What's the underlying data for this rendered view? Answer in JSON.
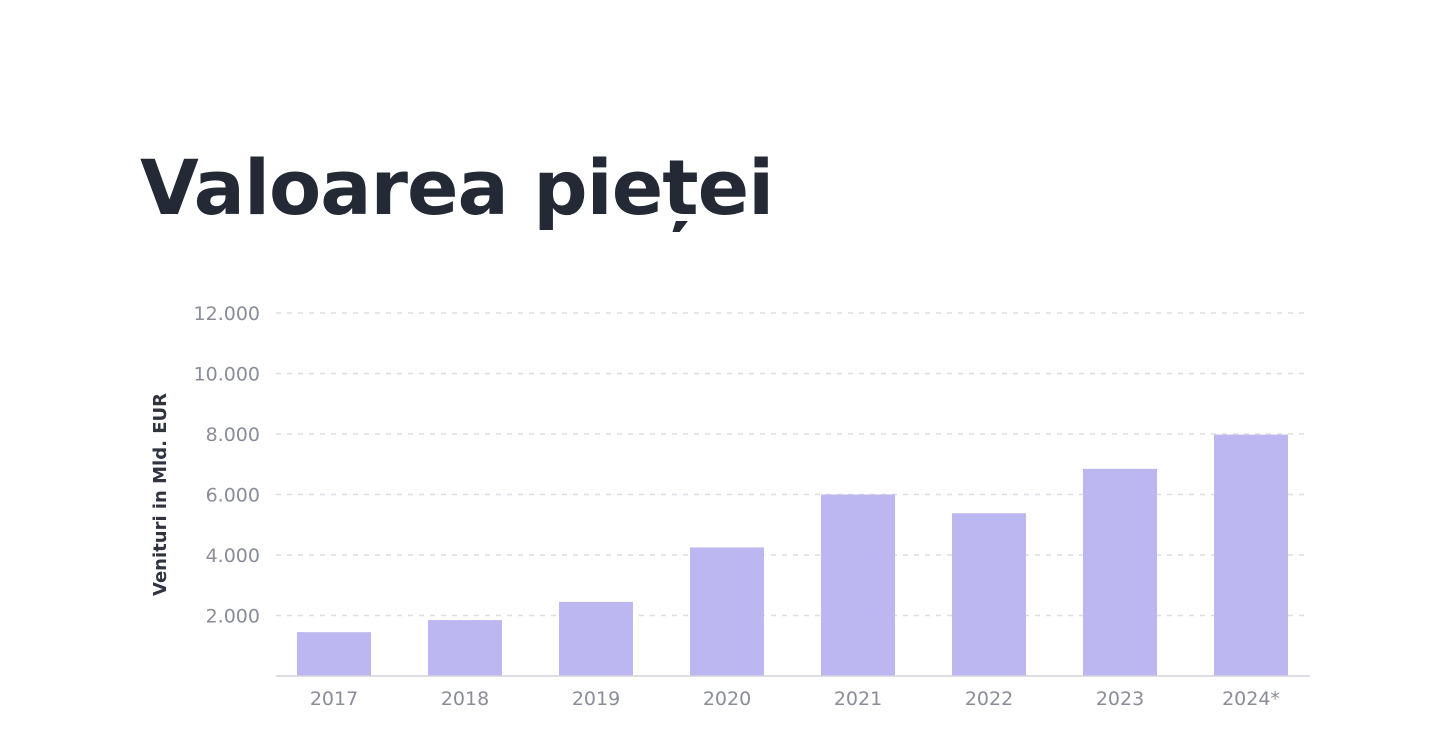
{
  "title": "Valoarea pieței",
  "colors": {
    "bar": "#bdb7f1",
    "title": "#232a35"
  },
  "chart_data": {
    "type": "bar",
    "title": "",
    "xlabel": "",
    "ylabel": "Venituri in Mld. EUR",
    "categories": [
      "2017",
      "2018",
      "2019",
      "2020",
      "2021",
      "2022",
      "2023",
      "2024*"
    ],
    "values": [
      1450,
      1850,
      2450,
      4250,
      6000,
      5380,
      6850,
      7980
    ],
    "ylim": [
      0,
      12000
    ],
    "yticks": [
      {
        "value": 2000,
        "label": "2.000"
      },
      {
        "value": 4000,
        "label": "4.000"
      },
      {
        "value": 6000,
        "label": "6.000"
      },
      {
        "value": 8000,
        "label": "8.000"
      },
      {
        "value": 10000,
        "label": "10.000"
      },
      {
        "value": 12000,
        "label": "12.000"
      }
    ],
    "grid": true,
    "legend": "none"
  }
}
